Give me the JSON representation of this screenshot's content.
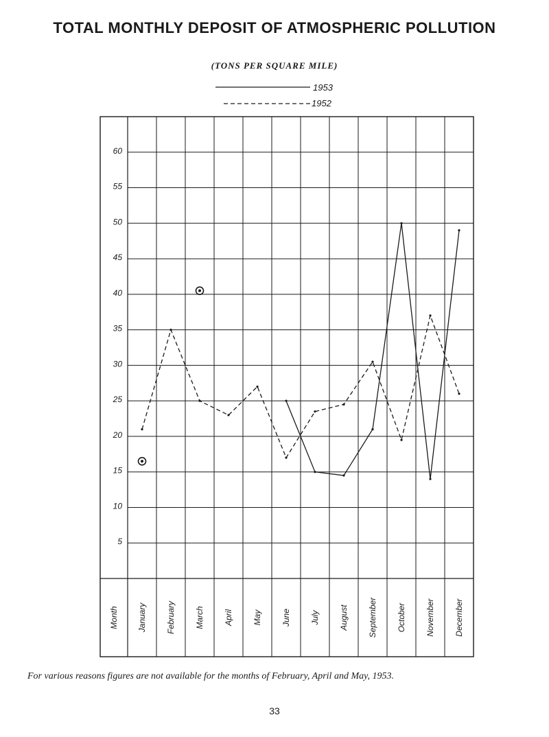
{
  "page": {
    "title": "TOTAL MONTHLY DEPOSIT OF ATMOSPHERIC POLLUTION",
    "subtitle": "(TONS PER SQUARE MILE)",
    "footnote": "For various reasons figures are not available for the months of February, April and May, 1953.",
    "page_number": "33"
  },
  "chart_data": {
    "type": "line",
    "xlabel": "Month",
    "categories": [
      "January",
      "February",
      "March",
      "April",
      "May",
      "June",
      "July",
      "August",
      "September",
      "October",
      "November",
      "December"
    ],
    "yticks": [
      5,
      10,
      15,
      20,
      25,
      30,
      35,
      40,
      45,
      50,
      55,
      60
    ],
    "ylim": [
      0,
      65
    ],
    "grid": true,
    "legend_position": "top-center",
    "series": [
      {
        "name": "1953",
        "style": "solid",
        "color": "#1a1a1a",
        "values": [
          null,
          null,
          null,
          null,
          null,
          25,
          15,
          14.5,
          21,
          50,
          14,
          49
        ]
      },
      {
        "name": "1952",
        "style": "dashed",
        "color": "#1a1a1a",
        "values": [
          21,
          35,
          25,
          23,
          27,
          17,
          23.5,
          24.5,
          30.5,
          19.5,
          37,
          26
        ]
      }
    ],
    "markers": [
      {
        "month": "January",
        "value": 16.5,
        "icon": "circled-dot-icon"
      },
      {
        "month": "March",
        "value": 40.5,
        "icon": "circled-dot-icon"
      }
    ]
  }
}
